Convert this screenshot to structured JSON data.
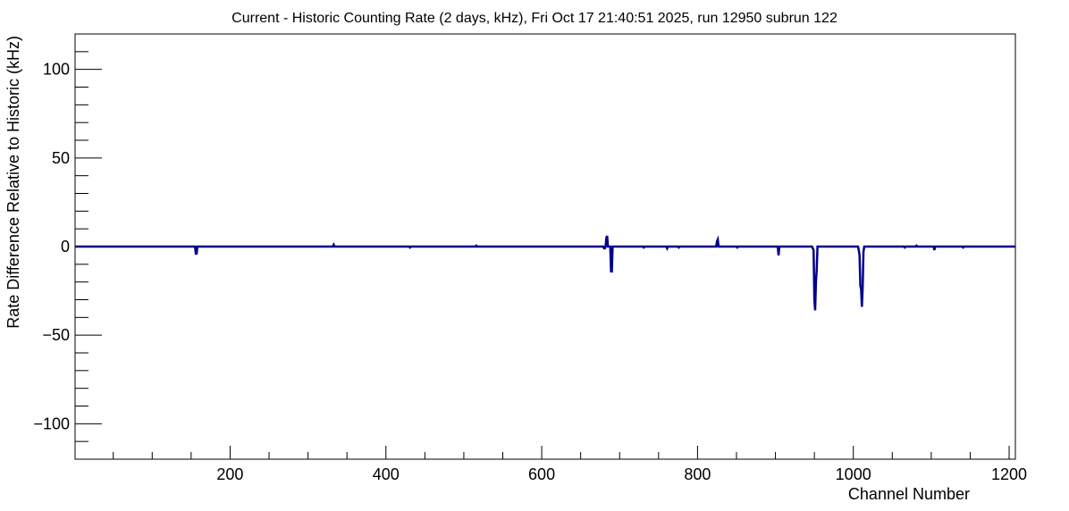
{
  "chart_data": {
    "type": "line",
    "title": "Current - Historic Counting Rate (2 days, kHz), Fri Oct 17 21:40:51 2025, run 12950 subrun 122",
    "xlabel": "Channel Number",
    "ylabel": "Rate Difference Relative to Historic (kHz)",
    "xlim": [
      1,
      1208
    ],
    "ylim": [
      -120,
      120
    ],
    "x_ticks": [
      200,
      400,
      600,
      800,
      1000,
      1200
    ],
    "y_ticks": [
      -100,
      -50,
      0,
      50,
      100
    ],
    "x_tick_labels": [
      "200",
      "400",
      "600",
      "800",
      "1000",
      "1200"
    ],
    "y_tick_labels": [
      "−100",
      "−50",
      "0",
      "50",
      "100"
    ],
    "grid": false,
    "line_color": "#00008b",
    "series": [
      {
        "values": [
          [
            1,
            0
          ],
          [
            155,
            0
          ],
          [
            156,
            -4
          ],
          [
            157,
            -4
          ],
          [
            158,
            0
          ],
          [
            332,
            0
          ],
          [
            333,
            1
          ],
          [
            334,
            0
          ],
          [
            430,
            0
          ],
          [
            431,
            -0.5
          ],
          [
            432,
            0
          ],
          [
            515,
            0
          ],
          [
            516,
            0.5
          ],
          [
            517,
            0
          ],
          [
            679,
            0
          ],
          [
            680,
            -1
          ],
          [
            681,
            -1
          ],
          [
            682,
            0
          ],
          [
            683,
            5
          ],
          [
            684,
            6
          ],
          [
            685,
            0
          ],
          [
            688,
            0
          ],
          [
            689,
            -14
          ],
          [
            690,
            -14
          ],
          [
            691,
            0
          ],
          [
            730,
            0
          ],
          [
            731,
            -0.5
          ],
          [
            732,
            0
          ],
          [
            760,
            0
          ],
          [
            761,
            -1
          ],
          [
            762,
            0
          ],
          [
            775,
            0
          ],
          [
            776,
            -0.5
          ],
          [
            777,
            0
          ],
          [
            824,
            0
          ],
          [
            825,
            3
          ],
          [
            826,
            4
          ],
          [
            827,
            0
          ],
          [
            850,
            0
          ],
          [
            851,
            -0.5
          ],
          [
            852,
            0
          ],
          [
            903,
            0
          ],
          [
            904,
            -5
          ],
          [
            905,
            0
          ],
          [
            947,
            0
          ],
          [
            948,
            -1
          ],
          [
            949,
            -2
          ],
          [
            950,
            -30
          ],
          [
            951,
            -36
          ],
          [
            952,
            -20
          ],
          [
            953,
            -13
          ],
          [
            954,
            0
          ],
          [
            1006,
            0
          ],
          [
            1007,
            -2
          ],
          [
            1008,
            -5
          ],
          [
            1009,
            -22
          ],
          [
            1010,
            -24
          ],
          [
            1011,
            -34
          ],
          [
            1012,
            -23
          ],
          [
            1013,
            -3
          ],
          [
            1014,
            0
          ],
          [
            1065,
            0
          ],
          [
            1066,
            -0.5
          ],
          [
            1067,
            0
          ],
          [
            1080,
            0
          ],
          [
            1081,
            0.5
          ],
          [
            1082,
            0
          ],
          [
            1103,
            0
          ],
          [
            1104,
            -2
          ],
          [
            1105,
            0
          ],
          [
            1140,
            0
          ],
          [
            1141,
            -0.5
          ],
          [
            1142,
            0
          ],
          [
            1208,
            0
          ]
        ]
      }
    ]
  }
}
